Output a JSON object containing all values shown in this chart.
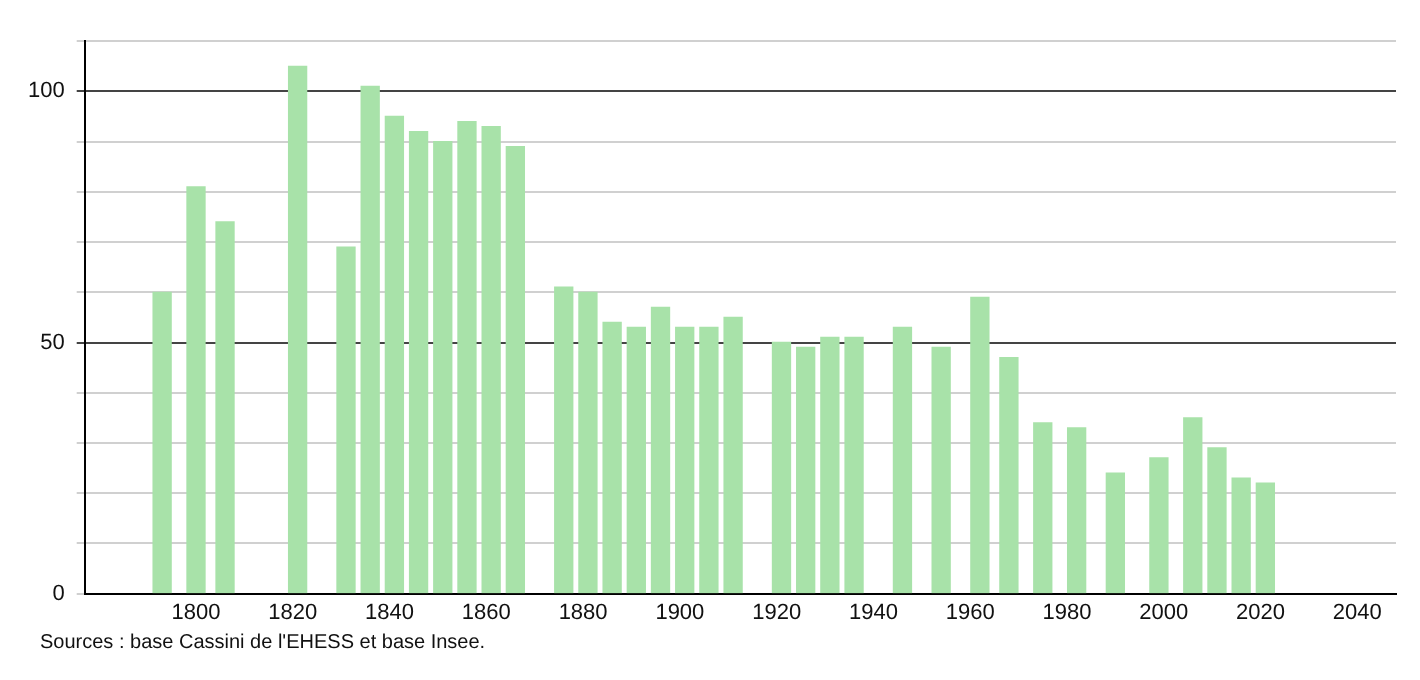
{
  "chart_data": {
    "type": "bar",
    "x": [
      1793,
      1800,
      1806,
      1821,
      1831,
      1836,
      1841,
      1846,
      1851,
      1856,
      1861,
      1866,
      1876,
      1881,
      1886,
      1891,
      1896,
      1901,
      1906,
      1911,
      1921,
      1926,
      1931,
      1936,
      1946,
      1954,
      1962,
      1968,
      1975,
      1982,
      1990,
      1999,
      2006,
      2011,
      2016,
      2021
    ],
    "values": [
      60,
      81,
      74,
      105,
      69,
      101,
      95,
      92,
      90,
      94,
      93,
      89,
      61,
      60,
      54,
      53,
      57,
      53,
      53,
      55,
      50,
      49,
      51,
      51,
      53,
      49,
      59,
      47,
      34,
      33,
      24,
      27,
      35,
      29,
      23,
      22
    ],
    "color": "#a8e2a9",
    "xlim": [
      1777,
      2048
    ],
    "xticks": [
      1800,
      1820,
      1840,
      1860,
      1880,
      1900,
      1920,
      1940,
      1960,
      1980,
      2000,
      2020,
      2040
    ],
    "ylim": [
      0,
      110
    ],
    "yticks": [
      0,
      {
        "value": 10,
        "label": null
      },
      {
        "value": 20,
        "label": null
      },
      {
        "value": 30,
        "label": null
      },
      {
        "value": 40,
        "label": null
      },
      50,
      {
        "value": 60,
        "label": null
      },
      {
        "value": 70,
        "label": null
      },
      {
        "value": 80,
        "label": null
      },
      {
        "value": 90,
        "label": null
      },
      100,
      {
        "value": 110,
        "label": null
      }
    ],
    "grid": "y",
    "legend": false,
    "annotations": [
      "Sources : base Cassini de l'EHESS et base Insee."
    ]
  }
}
